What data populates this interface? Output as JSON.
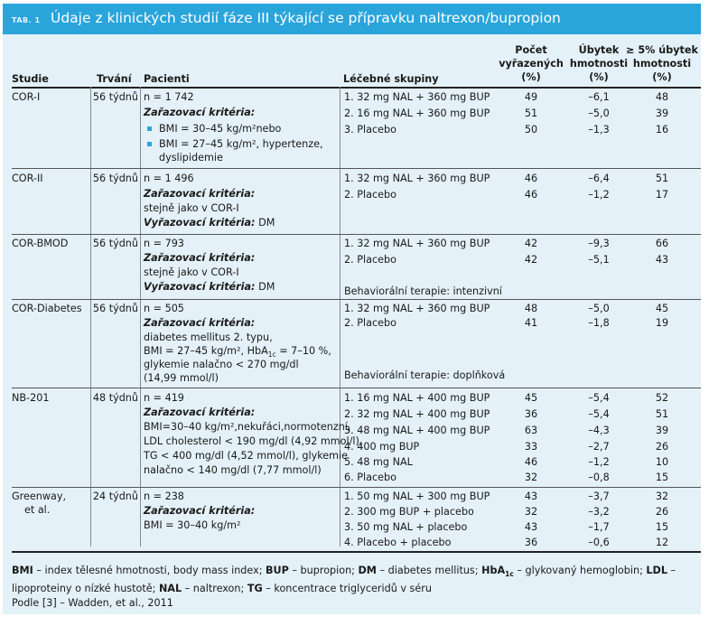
{
  "table_label": "TAB. 1",
  "title": "Údaje z klinických studií fáze III týkající se přípravku naltrexon/bupropion",
  "headers": {
    "studie": "Studie",
    "trvani": "Trvání",
    "pacienti": "Pacienti",
    "skupiny": "Léčebné skupiny",
    "pocet_l1": "Počet",
    "pocet_l2": "vyřazených",
    "pocet_l3": "(%)",
    "ubytek_l1": "Úbytek",
    "ubytek_l2": "hmotnosti",
    "ubytek_l3": "(%)",
    "pet_l1": "≥ 5% úbytek",
    "pet_l2": "hmotnosti",
    "pet_l3": "(%)"
  },
  "rows": [
    {
      "studie": "COR-I",
      "trvani": "56 týdnů",
      "n": "n = 1 742",
      "zar_label": "Zařazovací kritéria:",
      "bullet1": "BMI = 30–45 kg/m²nebo",
      "bullet2": "BMI = 27–45 kg/m², hypertenze,",
      "bullet2b": "dyslipidemie",
      "groups": [
        "1.  32 mg NAL + 360 mg BUP",
        "2.  16 mg NAL + 360 mg BUP",
        "3.  Placebo"
      ],
      "vyr": [
        "49",
        "51",
        "50"
      ],
      "ub": [
        "–6,1",
        "–5,0",
        "–1,3"
      ],
      "pet": [
        "48",
        "39",
        "16"
      ]
    },
    {
      "studie": "COR-II",
      "trvani": "56 týdnů",
      "n": "n = 1 496",
      "zar_label": "Zařazovací kritéria:",
      "zar_text": "stejně jako v COR-I",
      "vyr_label": "Vyřazovací kritéria:",
      "vyr_text": "DM",
      "groups": [
        "1.  32 mg NAL + 360 mg BUP",
        "2.  Placebo"
      ],
      "vyr": [
        "46",
        "46"
      ],
      "ub": [
        "–6,4",
        "–1,2"
      ],
      "pet": [
        "51",
        "17"
      ]
    },
    {
      "studie": "COR-BMOD",
      "trvani": "56 týdnů",
      "n": "n = 793",
      "zar_label": "Zařazovací kritéria:",
      "zar_text": "stejně jako v COR-I",
      "vyr_label": "Vyřazovací kritéria:",
      "vyr_text": "DM",
      "groups": [
        "1.  32 mg NAL + 360 mg BUP",
        "2.  Placebo"
      ],
      "note": "Behaviorální terapie: intenzivní",
      "vyr": [
        "42",
        "42"
      ],
      "ub": [
        "–9,3",
        "–5,1"
      ],
      "pet": [
        "66",
        "43"
      ]
    },
    {
      "studie": "COR-Diabetes",
      "trvani": "56 týdnů",
      "n": "n = 505",
      "zar_label": "Zařazovací kritéria:",
      "lines": [
        "diabetes mellitus 2. typu,",
        "BMI = 27–45 kg/m², HbA",
        "glykemie nalačno < 270 mg/dl",
        "(14,99 mmol/l)"
      ],
      "hba_sub": "1c",
      "hba_rest": " = 7–10 %,",
      "groups": [
        "1.  32 mg NAL + 360 mg BUP",
        "2.  Placebo"
      ],
      "note": "Behaviorální terapie: doplňková",
      "vyr": [
        "48",
        "41"
      ],
      "ub": [
        "–5,0",
        "–1,8"
      ],
      "pet": [
        "45",
        "19"
      ]
    },
    {
      "studie": "NB-201",
      "trvani": "48 týdnů",
      "n": "n = 419",
      "zar_label": "Zařazovací kritéria:",
      "lines": [
        "BMI=30–40 kg/m²,nekuřáci,normotenzní,",
        "LDL cholesterol < 190 mg/dl (4,92 mmol/l),",
        "TG < 400 mg/dl (4,52 mmol/l), glykemie",
        "nalačno < 140 mg/dl (7,77 mmol/l)"
      ],
      "groups": [
        "1.  16 mg NAL + 400 mg BUP",
        "2.  32 mg NAL + 400 mg BUP",
        "3.  48 mg NAL + 400 mg BUP",
        "4.  400 mg BUP",
        "5.  48 mg NAL",
        "6.  Placebo"
      ],
      "vyr": [
        "45",
        "36",
        "63",
        "33",
        "46",
        "32"
      ],
      "ub": [
        "–5,4",
        "–5,4",
        "–4,3",
        "–2,7",
        "–1,2",
        "–0,8"
      ],
      "pet": [
        "52",
        "51",
        "39",
        "26",
        "10",
        "15"
      ]
    },
    {
      "studie": "Greenway,",
      "studie2": "et al.",
      "trvani": "24 týdnů",
      "n": "n = 238",
      "zar_label": "Zařazovací kritéria:",
      "zar_text": "BMI = 30–40 kg/m²",
      "groups": [
        "1.  50 mg NAL + 300 mg BUP",
        "2.  300 mg BUP + placebo",
        "3.  50 mg NAL + placebo",
        "4.  Placebo + placebo"
      ],
      "vyr": [
        "43",
        "32",
        "43",
        "36"
      ],
      "ub": [
        "–3,7",
        "–3,2",
        "–1,7",
        "–0,6"
      ],
      "pet": [
        "32",
        "26",
        "15",
        "12"
      ]
    }
  ],
  "footnote": {
    "BMI": "BMI",
    "BMI_t": " – index tělesné hmotnosti, body mass index; ",
    "BUP": "BUP",
    "BUP_t": " – bupropion; ",
    "DM": "DM",
    "DM_t": " – diabetes mellitus; ",
    "HbA": "HbA",
    "HbA_sub": "1c",
    "HbA_t": " – glykovaný hemoglobin; ",
    "LDL": "LDL",
    "LDL_t": " – lipoproteiny o nízké hustotě; ",
    "NAL": "NAL",
    "NAL_t": " – naltrexon; ",
    "TG": "TG",
    "TG_t": " – koncentrace triglyceridů v séru",
    "source": "Podle [3] – Wadden, et al., 2011"
  },
  "colors": {
    "header_bg": "#2aa5dc",
    "panel_bg": "#e4f1f8",
    "bullet": "#2aa5dc"
  }
}
